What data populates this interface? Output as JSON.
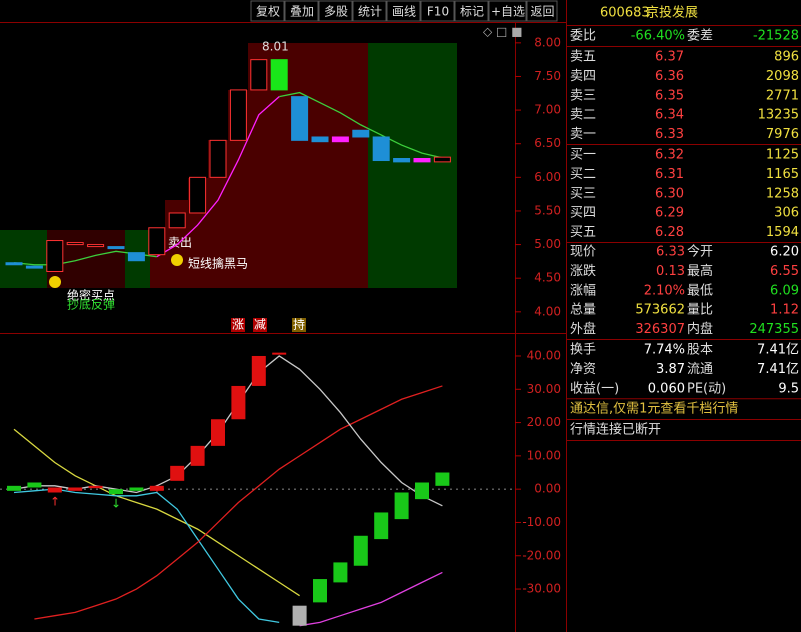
{
  "toolbar": [
    "复权",
    "叠加",
    "多股",
    "统计",
    "画线",
    "F10",
    "标记",
    "+自选",
    "返回"
  ],
  "price_chart": {
    "type": "candlestick",
    "ylim": [
      3.7,
      8.31
    ],
    "yticks": [
      {
        "value": 8,
        "label": "8.00"
      },
      {
        "value": 7.5,
        "label": "7.50"
      },
      {
        "value": 7,
        "label": "7.00"
      },
      {
        "value": 6.5,
        "label": "6.50"
      },
      {
        "value": 6,
        "label": "6.00"
      },
      {
        "value": 5.5,
        "label": "5.50"
      },
      {
        "value": 5,
        "label": "5.00"
      },
      {
        "value": 4.5,
        "label": "4.50"
      },
      {
        "value": 4,
        "label": "4.00"
      }
    ],
    "candles": [
      {
        "open": 4.73,
        "close": 4.7,
        "color": "#1e8fd6",
        "filled": true
      },
      {
        "open": 4.68,
        "close": 4.66,
        "color": "#1e8fd6",
        "filled": true
      },
      {
        "open": 4.6,
        "close": 5.06,
        "color": "#ff3232",
        "filled": false
      },
      {
        "open": 5.0,
        "close": 5.03,
        "color": "#ff3232",
        "filled": false
      },
      {
        "open": 4.99,
        "close": 5.0,
        "color": "#ff3232",
        "filled": false
      },
      {
        "open": 4.97,
        "close": 4.94,
        "color": "#1e8fd6",
        "filled": true
      },
      {
        "open": 4.88,
        "close": 4.76,
        "color": "#1e8fd6",
        "filled": true
      },
      {
        "open": 4.85,
        "close": 5.25,
        "color": "#ff3232",
        "filled": false
      },
      {
        "open": 5.25,
        "close": 5.47,
        "color": "#ff3232",
        "filled": false
      },
      {
        "open": 5.47,
        "close": 6.0,
        "color": "#ff3232",
        "filled": false
      },
      {
        "open": 6.0,
        "close": 6.55,
        "color": "#ff3232",
        "filled": false
      },
      {
        "open": 6.55,
        "close": 7.3,
        "color": "#ff3232",
        "filled": false
      },
      {
        "open": 7.3,
        "close": 7.75,
        "color": "#ff3232",
        "filled": false
      },
      {
        "open": 7.75,
        "close": 7.3,
        "color": "#19e619",
        "filled": true
      },
      {
        "open": 7.2,
        "close": 6.55,
        "color": "#1e8fd6",
        "filled": true
      },
      {
        "open": 6.6,
        "close": 6.53,
        "color": "#1e8fd6",
        "filled": true
      },
      {
        "open": 6.6,
        "close": 6.53,
        "color": "#ff20ff",
        "filled": true
      },
      {
        "open": 6.7,
        "close": 6.6,
        "color": "#1e8fd6",
        "filled": true
      },
      {
        "open": 6.6,
        "close": 6.25,
        "color": "#1e8fd6",
        "filled": true
      },
      {
        "open": 6.28,
        "close": 6.23,
        "color": "#1e8fd6",
        "filled": true
      },
      {
        "open": 6.28,
        "close": 6.23,
        "color": "#ff20ff",
        "filled": true
      },
      {
        "open": 6.3,
        "close": 6.23,
        "color": "#ff3232",
        "filled": false
      }
    ],
    "series": [
      {
        "color": "#3ccf3c",
        "values": [
          4.73,
          4.7,
          4.7,
          4.76,
          4.84,
          4.9,
          4.86,
          4.82,
          null,
          null,
          null,
          null,
          null,
          7.2,
          7.26,
          7.11,
          6.96,
          6.78,
          6.63,
          6.48,
          6.36,
          6.29
        ]
      },
      {
        "color": "#ff20ff",
        "values": [
          null,
          null,
          null,
          null,
          null,
          null,
          null,
          4.82,
          5.0,
          5.29,
          5.66,
          6.26,
          6.93,
          7.2,
          null,
          null,
          null,
          null,
          null,
          null,
          null,
          null
        ]
      }
    ],
    "annotations": [
      "8.01",
      "卖出",
      "短线擒黑马",
      "绝密买点",
      "抄底反弹"
    ]
  },
  "indicator_chart": {
    "type": "box",
    "ylim": [
      -42.9,
      46.3
    ],
    "yticks": [
      {
        "value": 40,
        "label": "40.00"
      },
      {
        "value": 30,
        "label": "30.00"
      },
      {
        "value": 20,
        "label": "20.00"
      },
      {
        "value": 10,
        "label": "10.00"
      },
      {
        "value": 0,
        "label": "0.00"
      },
      {
        "value": -10,
        "label": "-10.00"
      },
      {
        "value": -20,
        "label": "-20.00"
      },
      {
        "value": -30,
        "label": "-30.00"
      }
    ],
    "boxes": [
      {
        "top": 1,
        "bottom": -0.5,
        "color": "#19c819"
      },
      {
        "top": 2,
        "bottom": 0.5,
        "color": "#19c819"
      },
      {
        "top": 0.5,
        "bottom": -1,
        "color": "#e01010"
      },
      {
        "top": 0.5,
        "bottom": -0.5,
        "color": "#e01010"
      },
      {
        "top": 1,
        "bottom": 0.3,
        "color": "#e01010"
      },
      {
        "top": 0,
        "bottom": -1.5,
        "color": "#19c819"
      },
      {
        "top": 0.5,
        "bottom": -0.5,
        "color": "#19c819"
      },
      {
        "top": 1,
        "bottom": -0.5,
        "color": "#e01010"
      },
      {
        "top": 7,
        "bottom": 2.5,
        "color": "#e01010"
      },
      {
        "top": 13,
        "bottom": 7,
        "color": "#e01010"
      },
      {
        "top": 21,
        "bottom": 13,
        "color": "#e01010"
      },
      {
        "top": 31,
        "bottom": 21,
        "color": "#e01010"
      },
      {
        "top": 40,
        "bottom": 31,
        "color": "#e01010"
      },
      {
        "top": 41,
        "bottom": 40.5,
        "color": "#e01010"
      },
      {
        "top": -35,
        "bottom": -41,
        "color": "#b0b0b0"
      },
      {
        "top": -27,
        "bottom": -34,
        "color": "#19c819"
      },
      {
        "top": -22,
        "bottom": -28,
        "color": "#19c819"
      },
      {
        "top": -14,
        "bottom": -23,
        "color": "#19c819"
      },
      {
        "top": -7,
        "bottom": -15,
        "color": "#19c819"
      },
      {
        "top": -1,
        "bottom": -9,
        "color": "#19c819"
      },
      {
        "top": 2,
        "bottom": -3,
        "color": "#19c819"
      },
      {
        "top": 5,
        "bottom": 1,
        "color": "#19c819"
      }
    ],
    "series": [
      {
        "color": "#d8d840",
        "values": [
          18,
          13,
          8,
          4,
          1,
          -2,
          -4,
          -6,
          -9,
          -12,
          -16,
          -20,
          -24,
          -28,
          -32,
          null,
          null,
          null,
          null,
          null,
          null,
          null
        ]
      },
      {
        "color": "#40c8e0",
        "values": [
          -1,
          -0.5,
          0,
          -1,
          -1.5,
          -2,
          -2,
          -1,
          -6,
          -15,
          -24,
          -33,
          -39,
          -40,
          null,
          null,
          null,
          null,
          null,
          null,
          null,
          null
        ]
      },
      {
        "color": "#e02020",
        "values": [
          null,
          -39,
          -38,
          -37,
          -35,
          -33,
          -30,
          -26,
          -21,
          -16,
          -10,
          -4,
          1,
          6,
          10,
          14,
          18,
          21,
          24,
          27,
          29,
          31
        ]
      },
      {
        "color": "#e040e0",
        "values": [
          null,
          null,
          null,
          null,
          null,
          null,
          null,
          null,
          null,
          null,
          null,
          null,
          null,
          null,
          -41,
          -40,
          -38,
          -36,
          -34,
          -31,
          -28,
          -25
        ]
      },
      {
        "color": "#c8c8c8",
        "values": [
          0,
          1,
          1,
          0,
          1,
          0,
          -1,
          1,
          4,
          10,
          17,
          26,
          35,
          40,
          36,
          30,
          23,
          15,
          8,
          2,
          -2,
          -5
        ]
      }
    ],
    "labels": [
      "涨",
      "减",
      "持"
    ]
  },
  "quote": {
    "code": "600683",
    "name": "京投发展",
    "summary": {
      "label": "委比",
      "value": "-66.40%",
      "color": "#20e020",
      "label2": "委差",
      "value2": "-21528",
      "color2": "#20e020"
    },
    "asks": [
      {
        "label": "卖五",
        "price": "6.37",
        "volume": "896"
      },
      {
        "label": "卖四",
        "price": "6.36",
        "volume": "2098"
      },
      {
        "label": "卖三",
        "price": "6.35",
        "volume": "2771"
      },
      {
        "label": "卖二",
        "price": "6.34",
        "volume": "13235"
      },
      {
        "label": "卖一",
        "price": "6.33",
        "volume": "7976"
      }
    ],
    "bids": [
      {
        "label": "买一",
        "price": "6.32",
        "volume": "1125"
      },
      {
        "label": "买二",
        "price": "6.31",
        "volume": "1165"
      },
      {
        "label": "买三",
        "price": "6.30",
        "volume": "1258"
      },
      {
        "label": "买四",
        "price": "6.29",
        "volume": "306"
      },
      {
        "label": "买五",
        "price": "6.28",
        "volume": "1594"
      }
    ],
    "stats": [
      {
        "label": "现价",
        "value": "6.33",
        "color": "#ff4040",
        "label2": "今开",
        "value2": "6.20",
        "color2": "#ffffff"
      },
      {
        "label": "涨跌",
        "value": "0.13",
        "color": "#ff4040",
        "label2": "最高",
        "value2": "6.55",
        "color2": "#ff4040"
      },
      {
        "label": "涨幅",
        "value": "2.10%",
        "color": "#ff4040",
        "label2": "最低",
        "value2": "6.09",
        "color2": "#20e020"
      },
      {
        "label": "总量",
        "value": "573662",
        "color": "#f0e040",
        "label2": "量比",
        "value2": "1.12",
        "color2": "#ff4040"
      },
      {
        "label": "外盘",
        "value": "326307",
        "color": "#ff4040",
        "label2": "内盘",
        "value2": "247355",
        "color2": "#20e020"
      }
    ],
    "fundamentals": [
      {
        "label": "换手",
        "value": "7.74%",
        "color": "#ffffff",
        "label2": "股本",
        "value2": "7.41亿",
        "color2": "#ffffff"
      },
      {
        "label": "净资",
        "value": "3.87",
        "color": "#ffffff",
        "label2": "流通",
        "value2": "7.41亿",
        "color2": "#ffffff"
      },
      {
        "label": "收益(一)",
        "value": "0.060",
        "color": "#ffffff",
        "label2": "PE(动)",
        "value2": "9.5",
        "color2": "#ffffff"
      }
    ],
    "notice": "通达信,仅需1元查看千档行情",
    "status": "行情连接已断开"
  }
}
